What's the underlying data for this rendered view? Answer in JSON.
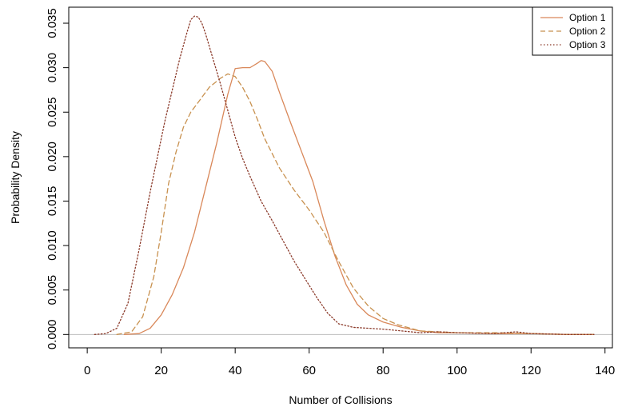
{
  "chart_data": {
    "type": "line",
    "xlabel": "Number of Collisions",
    "ylabel": "Probability Density",
    "xlim": [
      -5,
      142
    ],
    "ylim": [
      -0.0015,
      0.0368
    ],
    "x_ticks": [
      0,
      20,
      40,
      60,
      80,
      100,
      120,
      140
    ],
    "x_tick_labels": [
      "0",
      "20",
      "40",
      "60",
      "80",
      "100",
      "120",
      "140"
    ],
    "y_ticks": [
      0,
      0.005,
      0.01,
      0.015,
      0.02,
      0.025,
      0.03,
      0.035
    ],
    "y_tick_labels": [
      "0.000",
      "0.005",
      "0.010",
      "0.015",
      "0.020",
      "0.025",
      "0.030",
      "0.035"
    ],
    "grid": false,
    "baseline": {
      "y": 0,
      "color": "#bdbdbd"
    },
    "legend": {
      "position": "top-right",
      "entries": [
        "Option 1",
        "Option 2",
        "Option 3"
      ]
    },
    "series": [
      {
        "name": "Option 1",
        "color": "#d9885a",
        "dash": "solid",
        "x": [
          10,
          14,
          17,
          20,
          23,
          26,
          29,
          32,
          35,
          38,
          40,
          42,
          44,
          46,
          47,
          48,
          50,
          52,
          55,
          58,
          61,
          64,
          67,
          70,
          73,
          76,
          80,
          85,
          90,
          95,
          100,
          110,
          120,
          130,
          137
        ],
        "y": [
          0.0,
          0.0001,
          0.0007,
          0.0022,
          0.0045,
          0.0075,
          0.0115,
          0.0165,
          0.0215,
          0.027,
          0.0299,
          0.03,
          0.03,
          0.0305,
          0.0308,
          0.0307,
          0.0296,
          0.0272,
          0.0238,
          0.0205,
          0.0172,
          0.0128,
          0.0088,
          0.0056,
          0.0034,
          0.0022,
          0.0014,
          0.0008,
          0.0004,
          0.0002,
          0.0002,
          0.0001,
          0.0001,
          0.0,
          0.0
        ]
      },
      {
        "name": "Option 2",
        "color": "#c8914f",
        "dash": "dashed",
        "x": [
          8,
          12,
          15,
          18,
          20,
          22,
          24,
          26,
          28,
          30,
          33,
          36,
          38,
          40,
          42,
          44,
          46,
          48,
          52,
          56,
          60,
          64,
          68,
          72,
          76,
          80,
          84,
          90,
          100,
          110,
          120,
          130,
          137
        ],
        "y": [
          0.0,
          0.0003,
          0.002,
          0.0065,
          0.0115,
          0.017,
          0.0205,
          0.0233,
          0.025,
          0.0261,
          0.0278,
          0.0288,
          0.0293,
          0.029,
          0.0278,
          0.0262,
          0.0242,
          0.022,
          0.0187,
          0.0162,
          0.014,
          0.0115,
          0.0082,
          0.0052,
          0.0032,
          0.0018,
          0.0011,
          0.0004,
          0.0002,
          0.0002,
          0.0001,
          0.0,
          0.0
        ]
      },
      {
        "name": "Option 3",
        "color": "#8b3a2a",
        "dash": "dotted",
        "x": [
          2,
          5,
          8,
          11,
          14,
          17,
          19,
          21,
          23,
          25,
          27,
          28,
          29,
          30,
          31,
          32,
          34,
          36,
          38,
          40,
          42,
          44,
          47,
          50,
          53,
          56,
          59,
          62,
          65,
          68,
          72,
          76,
          80,
          85,
          90,
          95,
          100,
          110,
          116,
          120,
          130,
          137
        ],
        "y": [
          0.0,
          0.0001,
          0.0007,
          0.0035,
          0.0095,
          0.016,
          0.02,
          0.024,
          0.0275,
          0.031,
          0.034,
          0.0354,
          0.0358,
          0.0357,
          0.035,
          0.0338,
          0.031,
          0.0282,
          0.0252,
          0.0222,
          0.0198,
          0.0178,
          0.015,
          0.0128,
          0.0105,
          0.0082,
          0.0062,
          0.0042,
          0.0024,
          0.0012,
          0.0008,
          0.0007,
          0.0006,
          0.0004,
          0.0002,
          0.0003,
          0.0002,
          0.0001,
          0.0003,
          0.0001,
          0.0,
          0.0
        ]
      }
    ]
  }
}
